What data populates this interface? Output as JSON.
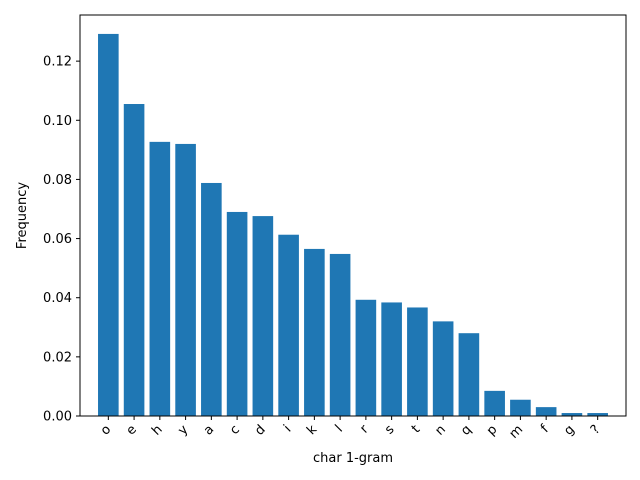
{
  "chart_data": {
    "type": "bar",
    "title": "",
    "xlabel": "char 1-gram",
    "ylabel": "Frequency",
    "categories": [
      "o",
      "e",
      "h",
      "y",
      "a",
      "c",
      "d",
      "i",
      "k",
      "l",
      "r",
      "s",
      "t",
      "n",
      "q",
      "p",
      "m",
      "f",
      "g",
      "?"
    ],
    "values": [
      0.1292,
      0.1055,
      0.0927,
      0.092,
      0.0788,
      0.069,
      0.0676,
      0.0613,
      0.0565,
      0.0548,
      0.0393,
      0.0384,
      0.0367,
      0.032,
      0.028,
      0.0085,
      0.0055,
      0.003,
      0.001,
      0.001
    ],
    "ylim": [
      0,
      0.1356
    ],
    "yticks": [
      "0.00",
      "0.02",
      "0.04",
      "0.06",
      "0.08",
      "0.10",
      "0.12"
    ],
    "bar_color": "#1f77b4",
    "grid": false,
    "legend": "none"
  }
}
